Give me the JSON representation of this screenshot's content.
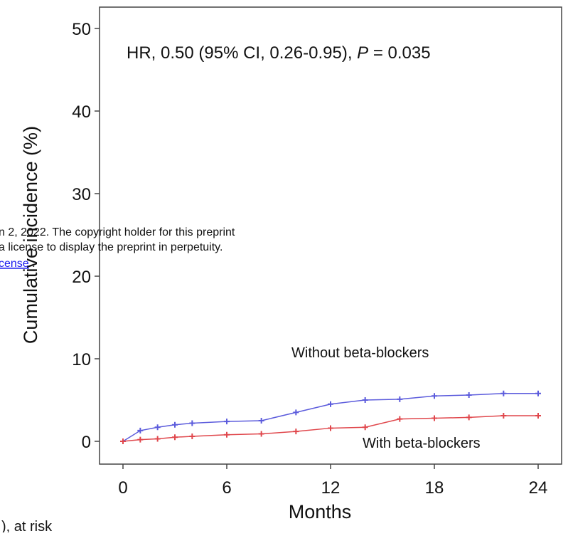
{
  "chart_data": {
    "type": "line",
    "annotation": {
      "prefix": "HR, 0.50 (95% CI, 0.26-0.95), ",
      "italic": "P",
      "suffix": " = 0.035"
    },
    "x_label": "Months",
    "y_label": "Cumulative incidence (%)",
    "x": [
      0,
      1,
      2,
      3,
      4,
      6,
      8,
      10,
      12,
      14,
      16,
      18,
      20,
      22,
      24
    ],
    "series": [
      {
        "name": "Without beta-blockers",
        "color": "#5b5bdc",
        "values": [
          0,
          1.3,
          1.7,
          2.0,
          2.2,
          2.4,
          2.5,
          3.5,
          4.5,
          5.0,
          5.1,
          5.5,
          5.6,
          5.8,
          5.8
        ]
      },
      {
        "name": "With beta-blockers",
        "color": "#e0474c",
        "values": [
          0,
          0.2,
          0.3,
          0.5,
          0.6,
          0.8,
          0.9,
          1.2,
          1.6,
          1.7,
          2.7,
          2.8,
          2.9,
          3.1,
          3.1
        ]
      }
    ],
    "xlim": [
      0,
      24
    ],
    "xticks": [
      0,
      6,
      12,
      18,
      24
    ],
    "ylim": [
      0,
      50
    ],
    "yticks": [
      0,
      10,
      20,
      30,
      40,
      50
    ]
  },
  "overlay": {
    "line1": "n 2, 2022. The copyright holder for this preprint",
    "line2": "a license to display the preprint in perpetuity.",
    "link": "cense",
    "after_link": " .",
    "bottom": "), at risk"
  }
}
